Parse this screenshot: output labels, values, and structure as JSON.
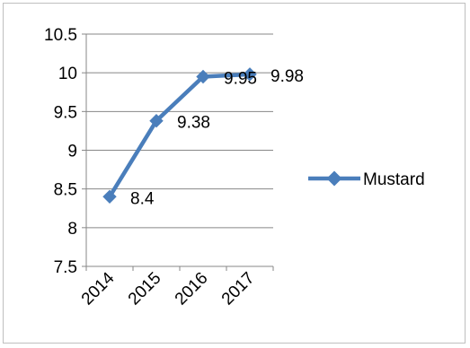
{
  "chart_data": {
    "type": "line",
    "categories": [
      "2014",
      "2015",
      "2016",
      "2017"
    ],
    "series": [
      {
        "name": "Mustard",
        "values": [
          8.4,
          9.38,
          9.95,
          9.98
        ],
        "color": "#4a7ebb"
      }
    ],
    "yticks": [
      "7.5",
      "8",
      "8.5",
      "9",
      "9.5",
      "10",
      "10.5"
    ],
    "data_labels": [
      "8.4",
      "9.38",
      "9.95",
      "9.98"
    ],
    "ylim": [
      7.5,
      10.5
    ],
    "grid": true,
    "legend": "right",
    "colors": {
      "gridline": "#878787",
      "axis": "#878787",
      "line": "#4a7ebb"
    }
  }
}
